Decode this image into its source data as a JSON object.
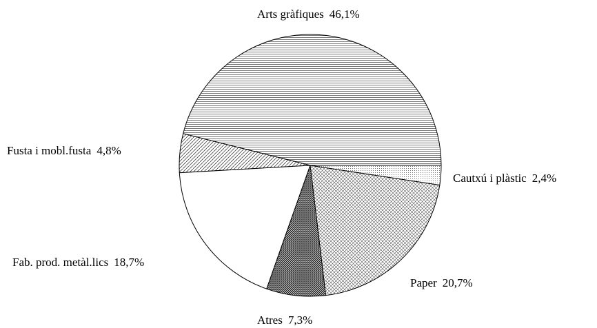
{
  "chart_data": {
    "type": "pie",
    "categories": [
      "Arts gràfiques",
      "Fusta i mobl.fusta",
      "Fab. prod. metàl.lics",
      "Atres",
      "Paper",
      "Cautxú i plàstic"
    ],
    "values": [
      46.1,
      4.8,
      18.7,
      7.3,
      20.7,
      2.4
    ],
    "value_labels": [
      "46,1%",
      "4,8%",
      "18,7%",
      "7,3%",
      "20,7%",
      "2,4%"
    ]
  }
}
